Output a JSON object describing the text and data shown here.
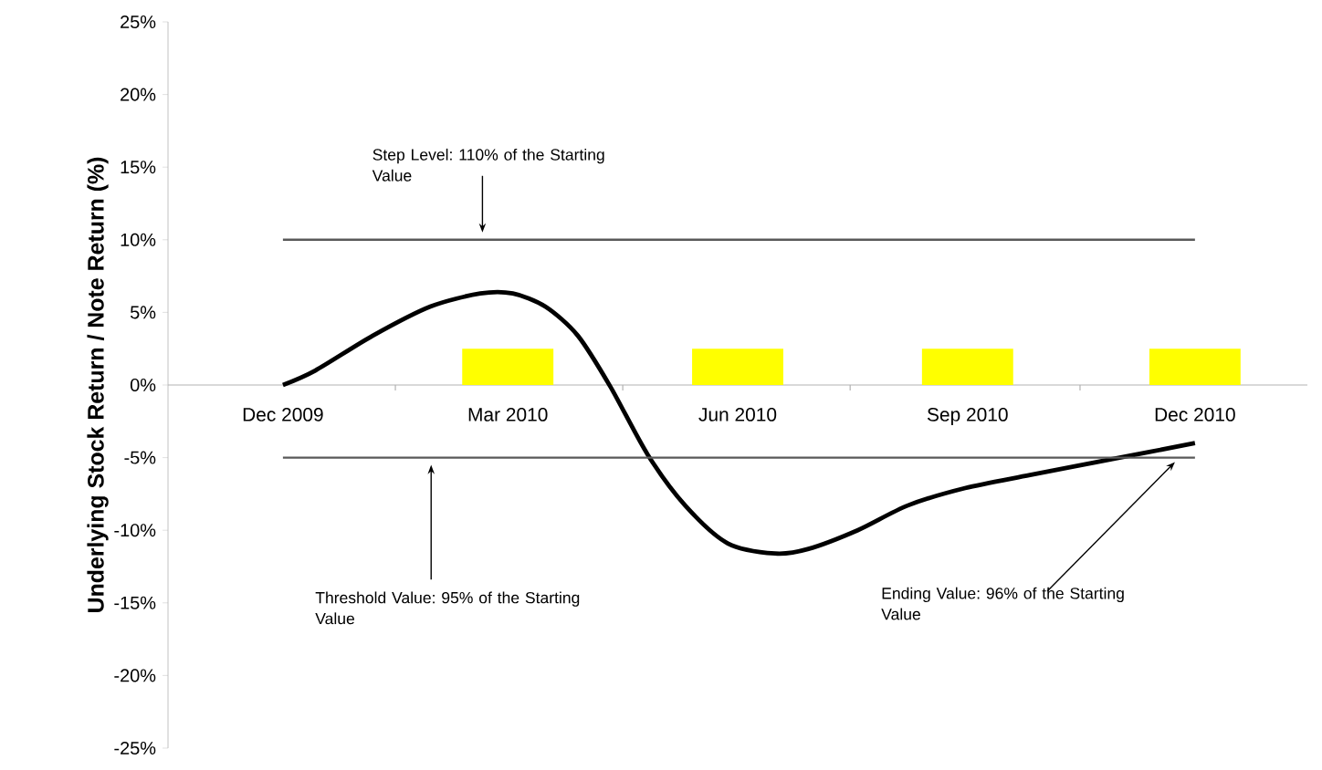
{
  "chart_data": {
    "type": "bar",
    "ylabel": "Underlying Stock Return / Note Return (%)",
    "xlim": [
      "2009-10-16",
      "2011-01-15"
    ],
    "xticks": [
      {
        "value": "2009-12",
        "label": "Dec 2009"
      },
      {
        "value": "2010-01-15",
        "label": null
      },
      {
        "value": "2010-03",
        "label": "Mar 2010"
      },
      {
        "value": "2010-04-16",
        "label": null
      },
      {
        "value": "2010-06",
        "label": "Jun 2010"
      },
      {
        "value": "2010-07-16",
        "label": null
      },
      {
        "value": "2010-09",
        "label": "Sep 2010"
      },
      {
        "value": "2010-10-16",
        "label": null
      },
      {
        "value": "2010-12",
        "label": "Dec 2010"
      }
    ],
    "ylim": [
      -25,
      25
    ],
    "yticks": [
      {
        "value": -25,
        "label": "-25%"
      },
      {
        "value": -20,
        "label": "-20%"
      },
      {
        "value": -15,
        "label": "-15%"
      },
      {
        "value": -10,
        "label": "-10%"
      },
      {
        "value": -5,
        "label": "-5%"
      },
      {
        "value": 0,
        "label": "0%"
      },
      {
        "value": 5,
        "label": "5%"
      },
      {
        "value": 10,
        "label": "10%"
      },
      {
        "value": 15,
        "label": "15%"
      },
      {
        "value": 20,
        "label": "20%"
      },
      {
        "value": 25,
        "label": "25%"
      }
    ],
    "series": [
      {
        "type": "line",
        "color": "#000000",
        "x": [
          "2009-12-01",
          "2009-12-14",
          "2010-01-06",
          "2010-01-29",
          "2010-02-18",
          "2010-03-03",
          "2010-03-16",
          "2010-03-29",
          "2010-04-11",
          "2010-04-26",
          "2010-05-11",
          "2010-05-28",
          "2010-06-16",
          "2010-06-29",
          "2010-07-19",
          "2010-08-08",
          "2010-08-31",
          "2010-09-26",
          "2010-10-29",
          "2010-12-01"
        ],
        "values": [
          0,
          1,
          3.4,
          5.4,
          6.3,
          6.3,
          5.4,
          3.4,
          -0.1,
          -4.8,
          -8.3,
          -10.9,
          -11.6,
          -11.3,
          -10,
          -8.3,
          -7.1,
          -6.2,
          -5.1,
          -4
        ]
      },
      {
        "color": "#ffff00",
        "x": [
          "2010-03",
          "2010-06",
          "2010-09",
          "2010-12"
        ],
        "values": [
          2.5,
          2.5,
          2.5,
          2.5
        ]
      }
    ],
    "ref_lines": [
      {
        "axis": "y",
        "value": 10,
        "color": "#595959"
      },
      {
        "axis": "y",
        "value": -5,
        "color": "#595959"
      }
    ],
    "annotations": [
      "Step Level: 110% of the Starting Value",
      "Threshold Value: 95% of the Starting Value",
      {
        "text": "Ending Value: 96% of the Starting Value",
        "x": "2010-11-23",
        "y": -5.3
      }
    ],
    "grid": false
  }
}
